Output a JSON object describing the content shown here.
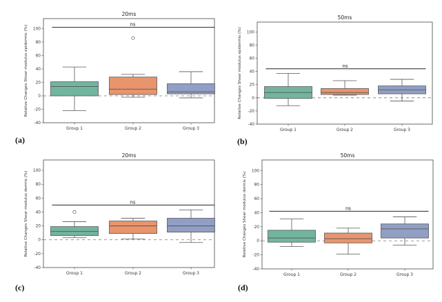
{
  "colors": {
    "Group 1": "#72b59e",
    "Group 2": "#e8956e",
    "Group 3": "#919fc5"
  },
  "chart_data": [
    {
      "type": "box",
      "panel_label": "(a)",
      "title": "20ms",
      "ylabel": "Relative Changes Shear modulus epidermis (%)",
      "ylim": [
        -40,
        115
      ],
      "yticks": [
        -40,
        -20,
        0,
        20,
        40,
        60,
        80,
        100
      ],
      "categories": [
        "Group 1",
        "Group 2",
        "Group 3"
      ],
      "boxes": [
        {
          "min": -22,
          "q1": 0,
          "median": 14,
          "q3": 21,
          "max": 43,
          "outliers": []
        },
        {
          "min": -2,
          "q1": 2,
          "median": 10,
          "q3": 28,
          "max": 32,
          "outliers": [
            86
          ]
        },
        {
          "min": -3,
          "q1": 3,
          "median": 6,
          "q3": 18,
          "max": 36,
          "outliers": []
        }
      ],
      "reference_line": 0,
      "significance": {
        "label": "ns",
        "y": 102
      }
    },
    {
      "type": "box",
      "panel_label": "(b)",
      "title": "50ms",
      "ylabel": "Relative Changes Shear modulus epidermis (%)",
      "ylim": [
        -40,
        115
      ],
      "yticks": [
        -40,
        -20,
        0,
        20,
        40,
        60,
        80,
        100
      ],
      "categories": [
        "Group 1",
        "Group 2",
        "Group 3"
      ],
      "boxes": [
        {
          "min": -12,
          "q1": -1,
          "median": 8,
          "q3": 17,
          "max": 37,
          "outliers": []
        },
        {
          "min": 4,
          "q1": 5,
          "median": 8,
          "q3": 14,
          "max": 26,
          "outliers": []
        },
        {
          "min": -5,
          "q1": 6,
          "median": 12,
          "q3": 18,
          "max": 28,
          "outliers": []
        }
      ],
      "reference_line": 0,
      "significance": {
        "label": "ns",
        "y": 44
      }
    },
    {
      "type": "box",
      "panel_label": "(c)",
      "title": "20ms",
      "ylabel": "Relative Changes Shear modulus dermis (%)",
      "ylim": [
        -40,
        115
      ],
      "yticks": [
        -40,
        -20,
        0,
        20,
        40,
        60,
        80,
        100
      ],
      "categories": [
        "Group 1",
        "Group 2",
        "Group 3"
      ],
      "boxes": [
        {
          "min": 3,
          "q1": 6,
          "median": 12,
          "q3": 19,
          "max": 26,
          "outliers": [
            40
          ]
        },
        {
          "min": 1,
          "q1": 9,
          "median": 20,
          "q3": 27,
          "max": 31,
          "outliers": []
        },
        {
          "min": -4,
          "q1": 11,
          "median": 20,
          "q3": 31,
          "max": 43,
          "outliers": []
        }
      ],
      "reference_line": 0,
      "significance": {
        "label": "ns",
        "y": 50
      }
    },
    {
      "type": "box",
      "panel_label": "(d)",
      "title": "50ms",
      "ylabel": "Relative Changes Shear modulus dermis (%)",
      "ylim": [
        -40,
        115
      ],
      "yticks": [
        -40,
        -20,
        0,
        20,
        40,
        60,
        80,
        100
      ],
      "categories": [
        "Group 1",
        "Group 2",
        "Group 3"
      ],
      "boxes": [
        {
          "min": -8,
          "q1": -2,
          "median": 4,
          "q3": 15,
          "max": 31,
          "outliers": []
        },
        {
          "min": -19,
          "q1": -3,
          "median": 3,
          "q3": 11,
          "max": 18,
          "outliers": []
        },
        {
          "min": -6,
          "q1": 4,
          "median": 17,
          "q3": 24,
          "max": 34,
          "outliers": []
        }
      ],
      "reference_line": 0,
      "significance": {
        "label": "ns",
        "y": 42
      }
    }
  ]
}
